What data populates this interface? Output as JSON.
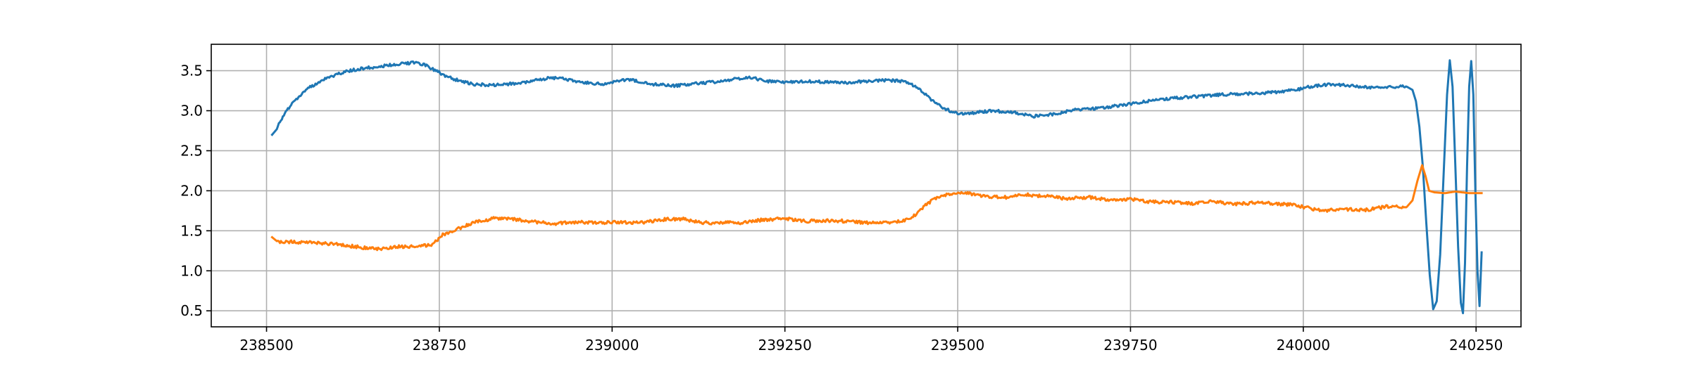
{
  "chart_data": {
    "type": "line",
    "title": "",
    "xlabel": "",
    "ylabel": "",
    "xlim": [
      238420,
      240315
    ],
    "ylim": [
      0.3,
      3.83
    ],
    "grid": true,
    "legend": "none",
    "x_ticks": [
      238500,
      238750,
      239000,
      239250,
      239500,
      239750,
      240000,
      240250
    ],
    "x_tick_labels": [
      "238500",
      "238750",
      "239000",
      "239250",
      "239500",
      "239750",
      "240000",
      "240250"
    ],
    "y_ticks": [
      0.5,
      1.0,
      1.5,
      2.0,
      2.5,
      3.0,
      3.5
    ],
    "y_tick_labels": [
      "0.5",
      "1.0",
      "1.5",
      "2.0",
      "2.5",
      "3.0",
      "3.5"
    ],
    "series": [
      {
        "color": "#1f77b4",
        "points": [
          [
            238508,
            2.7
          ],
          [
            238515,
            2.78
          ],
          [
            238525,
            2.95
          ],
          [
            238540,
            3.12
          ],
          [
            238560,
            3.28
          ],
          [
            238580,
            3.38
          ],
          [
            238600,
            3.45
          ],
          [
            238620,
            3.5
          ],
          [
            238640,
            3.53
          ],
          [
            238660,
            3.55
          ],
          [
            238680,
            3.57
          ],
          [
            238700,
            3.59
          ],
          [
            238715,
            3.6
          ],
          [
            238730,
            3.57
          ],
          [
            238745,
            3.5
          ],
          [
            238760,
            3.43
          ],
          [
            238780,
            3.37
          ],
          [
            238800,
            3.33
          ],
          [
            238830,
            3.32
          ],
          [
            238860,
            3.34
          ],
          [
            238890,
            3.38
          ],
          [
            238910,
            3.41
          ],
          [
            238930,
            3.4
          ],
          [
            238960,
            3.35
          ],
          [
            238990,
            3.33
          ],
          [
            239010,
            3.38
          ],
          [
            239030,
            3.38
          ],
          [
            239060,
            3.33
          ],
          [
            239090,
            3.31
          ],
          [
            239120,
            3.34
          ],
          [
            239150,
            3.36
          ],
          [
            239180,
            3.4
          ],
          [
            239200,
            3.42
          ],
          [
            239220,
            3.37
          ],
          [
            239250,
            3.36
          ],
          [
            239280,
            3.37
          ],
          [
            239310,
            3.36
          ],
          [
            239340,
            3.35
          ],
          [
            239370,
            3.37
          ],
          [
            239400,
            3.38
          ],
          [
            239420,
            3.37
          ],
          [
            239440,
            3.3
          ],
          [
            239460,
            3.15
          ],
          [
            239480,
            3.03
          ],
          [
            239500,
            2.96
          ],
          [
            239520,
            2.97
          ],
          [
            239550,
            3.0
          ],
          [
            239580,
            2.98
          ],
          [
            239610,
            2.93
          ],
          [
            239640,
            2.96
          ],
          [
            239670,
            3.01
          ],
          [
            239700,
            3.03
          ],
          [
            239730,
            3.06
          ],
          [
            239760,
            3.1
          ],
          [
            239790,
            3.14
          ],
          [
            239820,
            3.16
          ],
          [
            239850,
            3.18
          ],
          [
            239880,
            3.2
          ],
          [
            239910,
            3.21
          ],
          [
            239940,
            3.22
          ],
          [
            239970,
            3.24
          ],
          [
            239990,
            3.26
          ],
          [
            240010,
            3.3
          ],
          [
            240040,
            3.33
          ],
          [
            240070,
            3.31
          ],
          [
            240100,
            3.29
          ],
          [
            240130,
            3.3
          ],
          [
            240150,
            3.3
          ],
          [
            240158,
            3.26
          ],
          [
            240163,
            3.12
          ],
          [
            240168,
            2.8
          ],
          [
            240173,
            2.3
          ],
          [
            240178,
            1.6
          ],
          [
            240183,
            0.95
          ],
          [
            240188,
            0.52
          ],
          [
            240193,
            0.62
          ],
          [
            240198,
            1.2
          ],
          [
            240203,
            2.2
          ],
          [
            240208,
            3.2
          ],
          [
            240212,
            3.63
          ],
          [
            240216,
            3.3
          ],
          [
            240220,
            2.3
          ],
          [
            240224,
            1.3
          ],
          [
            240228,
            0.6
          ],
          [
            240231,
            0.47
          ],
          [
            240234,
            1.1
          ],
          [
            240237,
            2.3
          ],
          [
            240240,
            3.3
          ],
          [
            240243,
            3.62
          ],
          [
            240246,
            3.2
          ],
          [
            240249,
            2.0
          ],
          [
            240252,
            1.0
          ],
          [
            240255,
            0.56
          ],
          [
            240258,
            1.23
          ]
        ]
      },
      {
        "color": "#ff7f0e",
        "points": [
          [
            238508,
            1.42
          ],
          [
            238515,
            1.36
          ],
          [
            238540,
            1.36
          ],
          [
            238570,
            1.35
          ],
          [
            238600,
            1.33
          ],
          [
            238630,
            1.3
          ],
          [
            238660,
            1.27
          ],
          [
            238690,
            1.3
          ],
          [
            238720,
            1.3
          ],
          [
            238740,
            1.33
          ],
          [
            238755,
            1.45
          ],
          [
            238775,
            1.52
          ],
          [
            238800,
            1.6
          ],
          [
            238830,
            1.66
          ],
          [
            238860,
            1.64
          ],
          [
            238890,
            1.61
          ],
          [
            238920,
            1.59
          ],
          [
            238950,
            1.61
          ],
          [
            238980,
            1.6
          ],
          [
            239010,
            1.61
          ],
          [
            239040,
            1.6
          ],
          [
            239070,
            1.64
          ],
          [
            239100,
            1.65
          ],
          [
            239130,
            1.6
          ],
          [
            239160,
            1.6
          ],
          [
            239190,
            1.6
          ],
          [
            239220,
            1.64
          ],
          [
            239250,
            1.65
          ],
          [
            239280,
            1.62
          ],
          [
            239310,
            1.63
          ],
          [
            239340,
            1.62
          ],
          [
            239370,
            1.6
          ],
          [
            239400,
            1.6
          ],
          [
            239420,
            1.62
          ],
          [
            239440,
            1.7
          ],
          [
            239455,
            1.83
          ],
          [
            239470,
            1.92
          ],
          [
            239490,
            1.96
          ],
          [
            239510,
            1.98
          ],
          [
            239540,
            1.93
          ],
          [
            239570,
            1.92
          ],
          [
            239600,
            1.95
          ],
          [
            239630,
            1.93
          ],
          [
            239660,
            1.9
          ],
          [
            239690,
            1.92
          ],
          [
            239720,
            1.88
          ],
          [
            239750,
            1.9
          ],
          [
            239780,
            1.86
          ],
          [
            239810,
            1.86
          ],
          [
            239840,
            1.84
          ],
          [
            239870,
            1.87
          ],
          [
            239900,
            1.83
          ],
          [
            239930,
            1.85
          ],
          [
            239960,
            1.84
          ],
          [
            239990,
            1.82
          ],
          [
            240010,
            1.78
          ],
          [
            240030,
            1.75
          ],
          [
            240060,
            1.77
          ],
          [
            240090,
            1.76
          ],
          [
            240120,
            1.8
          ],
          [
            240150,
            1.8
          ],
          [
            240158,
            1.88
          ],
          [
            240165,
            2.12
          ],
          [
            240172,
            2.32
          ],
          [
            240177,
            2.18
          ],
          [
            240182,
            2.0
          ],
          [
            240190,
            1.98
          ],
          [
            240205,
            1.97
          ],
          [
            240220,
            1.99
          ],
          [
            240240,
            1.97
          ],
          [
            240258,
            1.97
          ]
        ]
      }
    ]
  }
}
